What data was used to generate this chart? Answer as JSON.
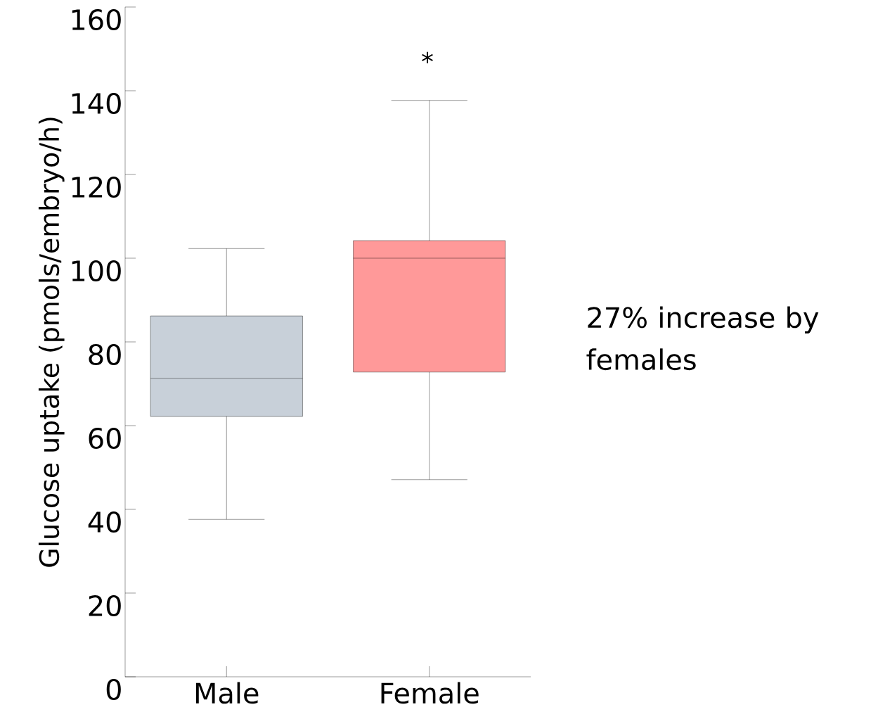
{
  "chart_data": {
    "type": "box",
    "ylabel": "Glucose uptake (pmols/embryo/h)",
    "categories": [
      "Male",
      "Female"
    ],
    "colors": [
      "#c8d0d9",
      "#ff9999"
    ],
    "boxes": [
      {
        "low": 37.6,
        "q1": 62.2,
        "median": 71.3,
        "q3": 86.2,
        "high": 102.3
      },
      {
        "low": 47.1,
        "q1": 72.8,
        "median": 100,
        "q3": 104.2,
        "high": 137.7
      }
    ],
    "ylim": [
      0,
      160
    ],
    "yticks": [
      0,
      20,
      40,
      60,
      80,
      100,
      120,
      140,
      160
    ],
    "annotations": [
      "*",
      "27% increase by females"
    ]
  }
}
